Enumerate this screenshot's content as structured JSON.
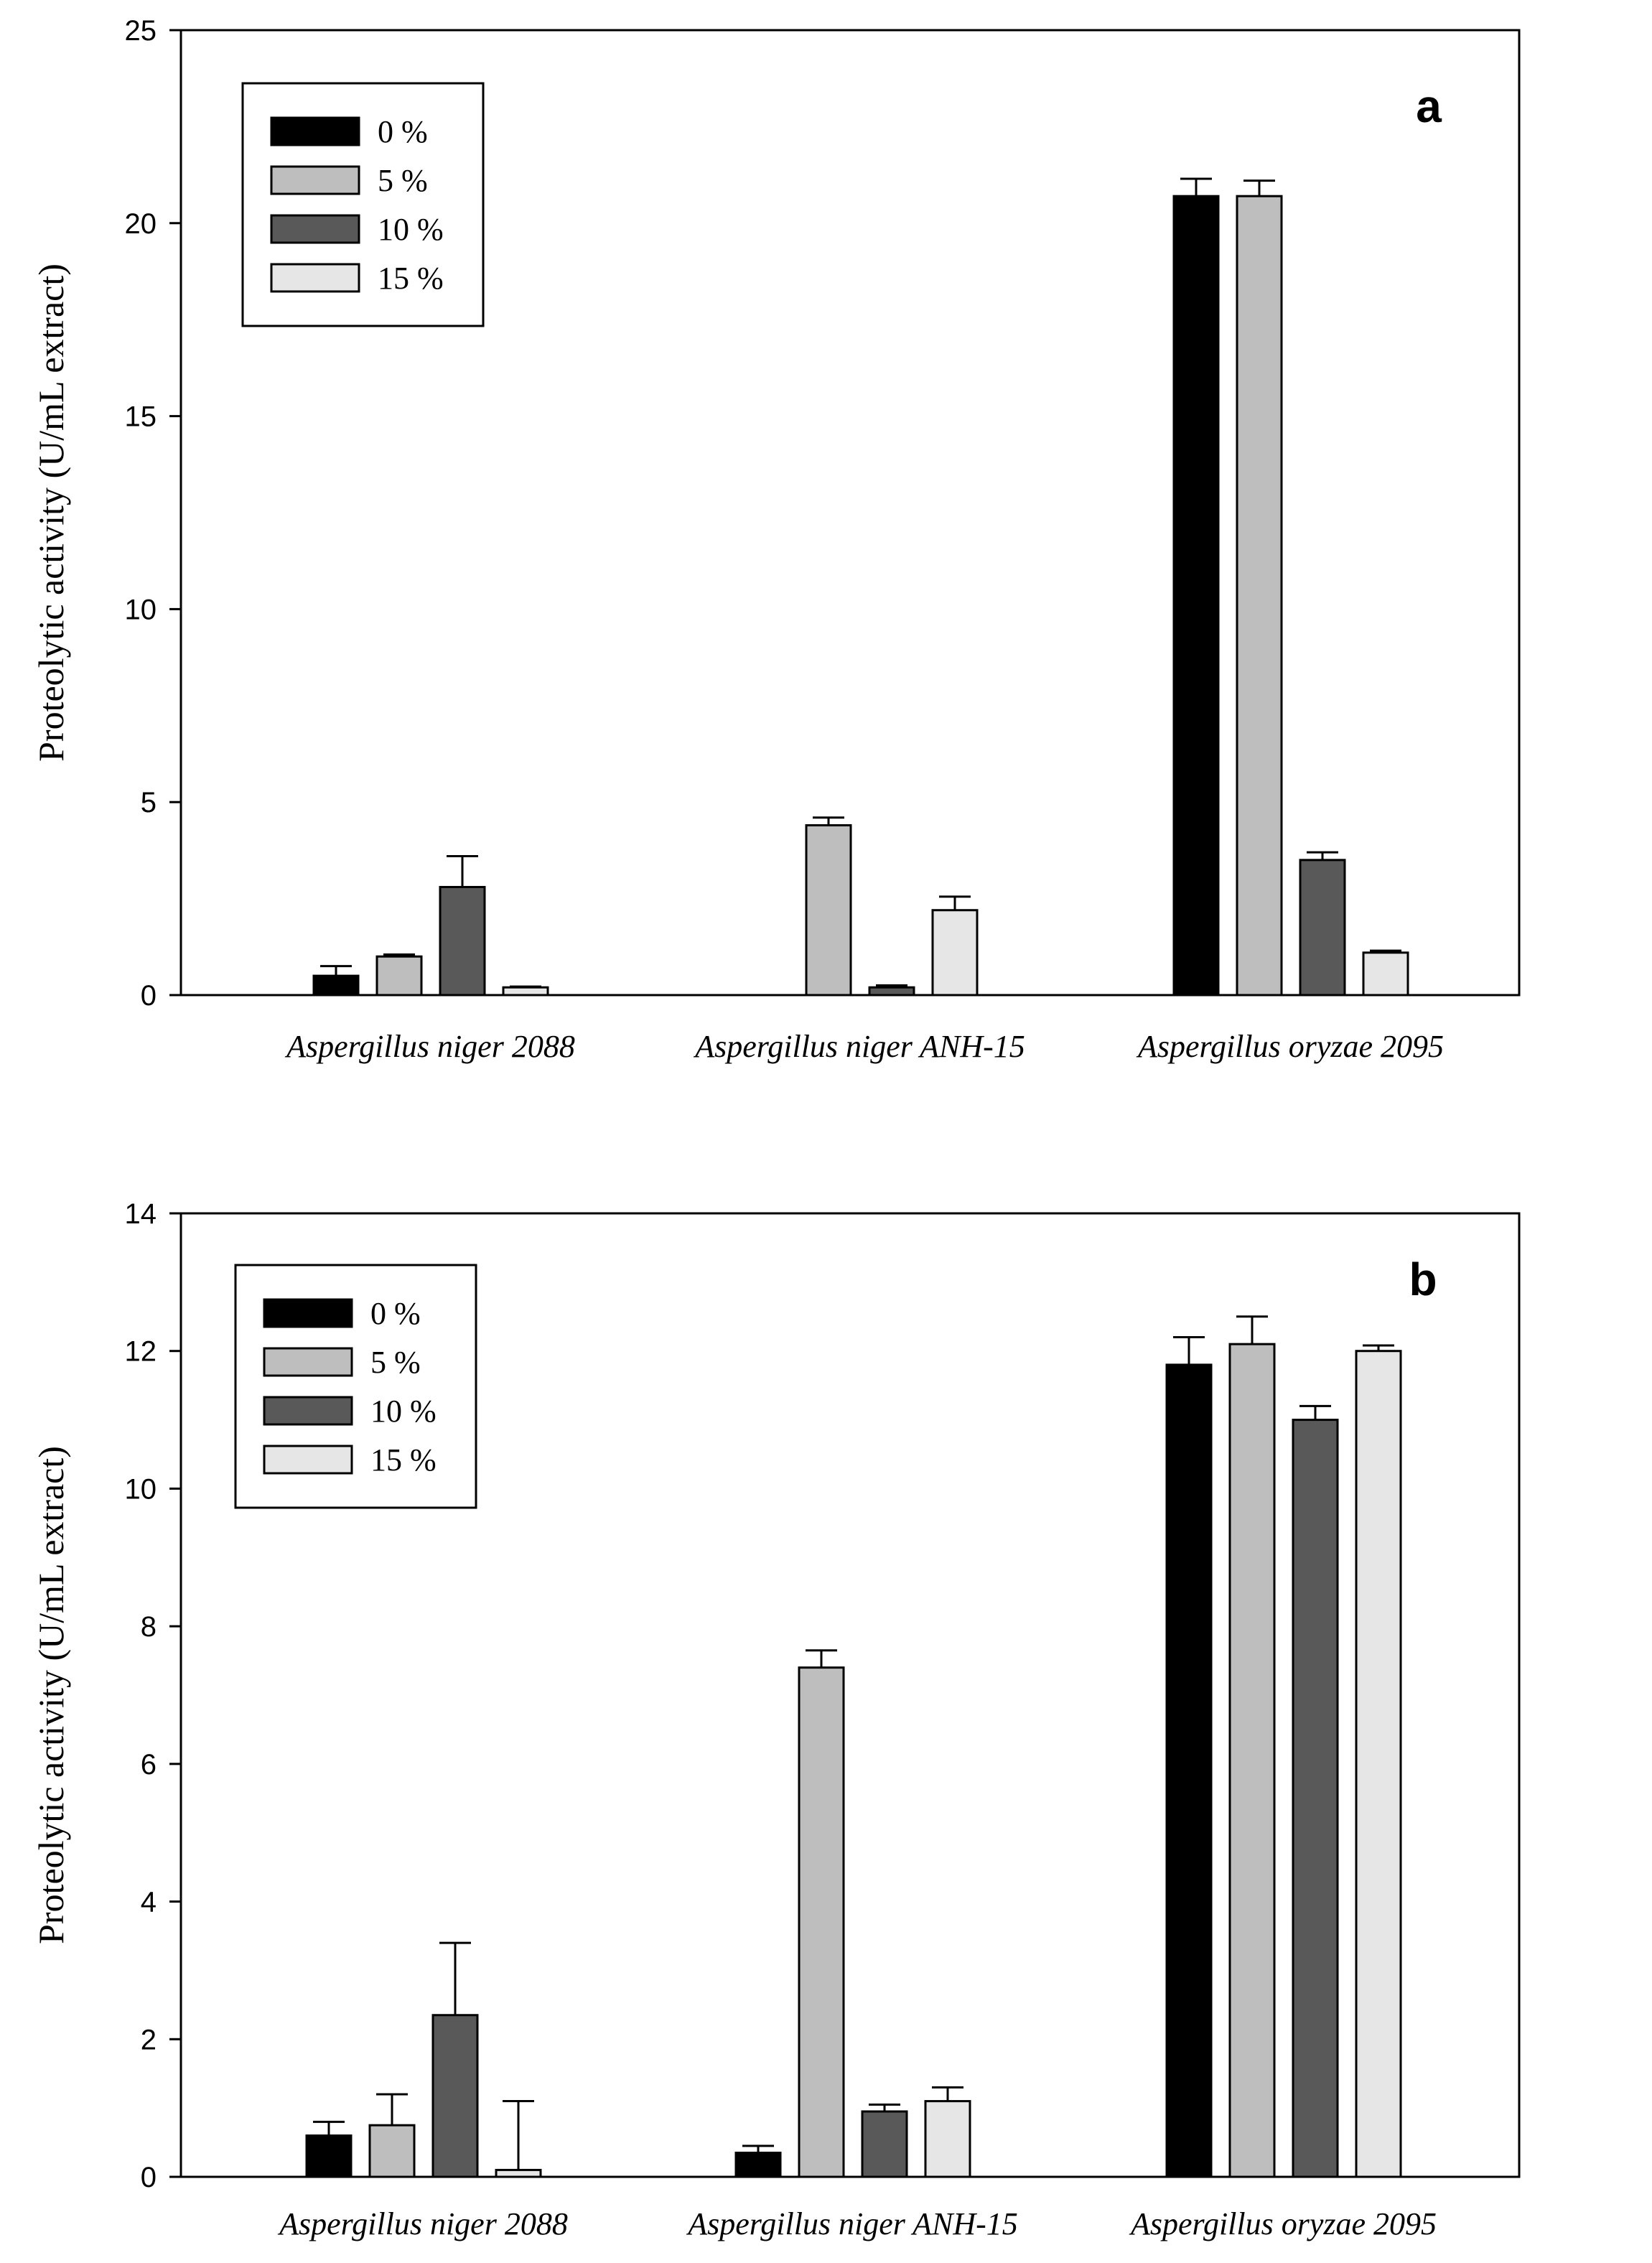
{
  "chart_data": [
    {
      "type": "bar",
      "panel_label": "a",
      "ylabel": "Proteolytic activity (U/mL extract)",
      "xlabel": "",
      "ylim": [
        0,
        25
      ],
      "yticks": [
        "0",
        "5",
        "10",
        "15",
        "20",
        "25"
      ],
      "legend_position": "top-left",
      "categories": [
        "Aspergillus niger 2088",
        "Aspergillus niger ANH-15",
        "Aspergillus oryzae 2095"
      ],
      "series": [
        {
          "name": "0 %",
          "color": "#000000",
          "values": [
            0.5,
            0,
            20.7
          ],
          "errors": [
            0.25,
            0,
            0.45
          ]
        },
        {
          "name": "5 %",
          "color": "#bebebe",
          "values": [
            1.0,
            4.4,
            20.7
          ],
          "errors": [
            0.05,
            0.2,
            0.4
          ]
        },
        {
          "name": "10 %",
          "color": "#595959",
          "values": [
            2.8,
            0.2,
            3.5
          ],
          "errors": [
            0.8,
            0.05,
            0.2
          ]
        },
        {
          "name": "15 %",
          "color": "#e6e6e6",
          "values": [
            0.2,
            2.2,
            1.1
          ],
          "errors": [
            0.02,
            0.35,
            0.05
          ]
        }
      ]
    },
    {
      "type": "bar",
      "panel_label": "b",
      "ylabel": "Proteolytic activity (U/mL extract)",
      "xlabel": "",
      "ylim": [
        0,
        14
      ],
      "yticks": [
        "0",
        "2",
        "4",
        "6",
        "8",
        "10",
        "12",
        "14"
      ],
      "legend_position": "top-left",
      "categories": [
        "Aspergillus niger 2088",
        "Aspergillus niger ANH-15",
        "Aspergillus oryzae 2095"
      ],
      "series": [
        {
          "name": "0 %",
          "color": "#000000",
          "values": [
            0.6,
            0.35,
            11.8
          ],
          "errors": [
            0.2,
            0.1,
            0.4
          ]
        },
        {
          "name": "5 %",
          "color": "#bebebe",
          "values": [
            0.75,
            7.4,
            12.1
          ],
          "errors": [
            0.45,
            0.25,
            0.4
          ]
        },
        {
          "name": "10 %",
          "color": "#595959",
          "values": [
            2.35,
            0.95,
            11.0
          ],
          "errors": [
            1.05,
            0.1,
            0.2
          ]
        },
        {
          "name": "15 %",
          "color": "#e6e6e6",
          "values": [
            0.1,
            1.1,
            12.0
          ],
          "errors": [
            1.0,
            0.2,
            0.08
          ]
        }
      ]
    }
  ]
}
